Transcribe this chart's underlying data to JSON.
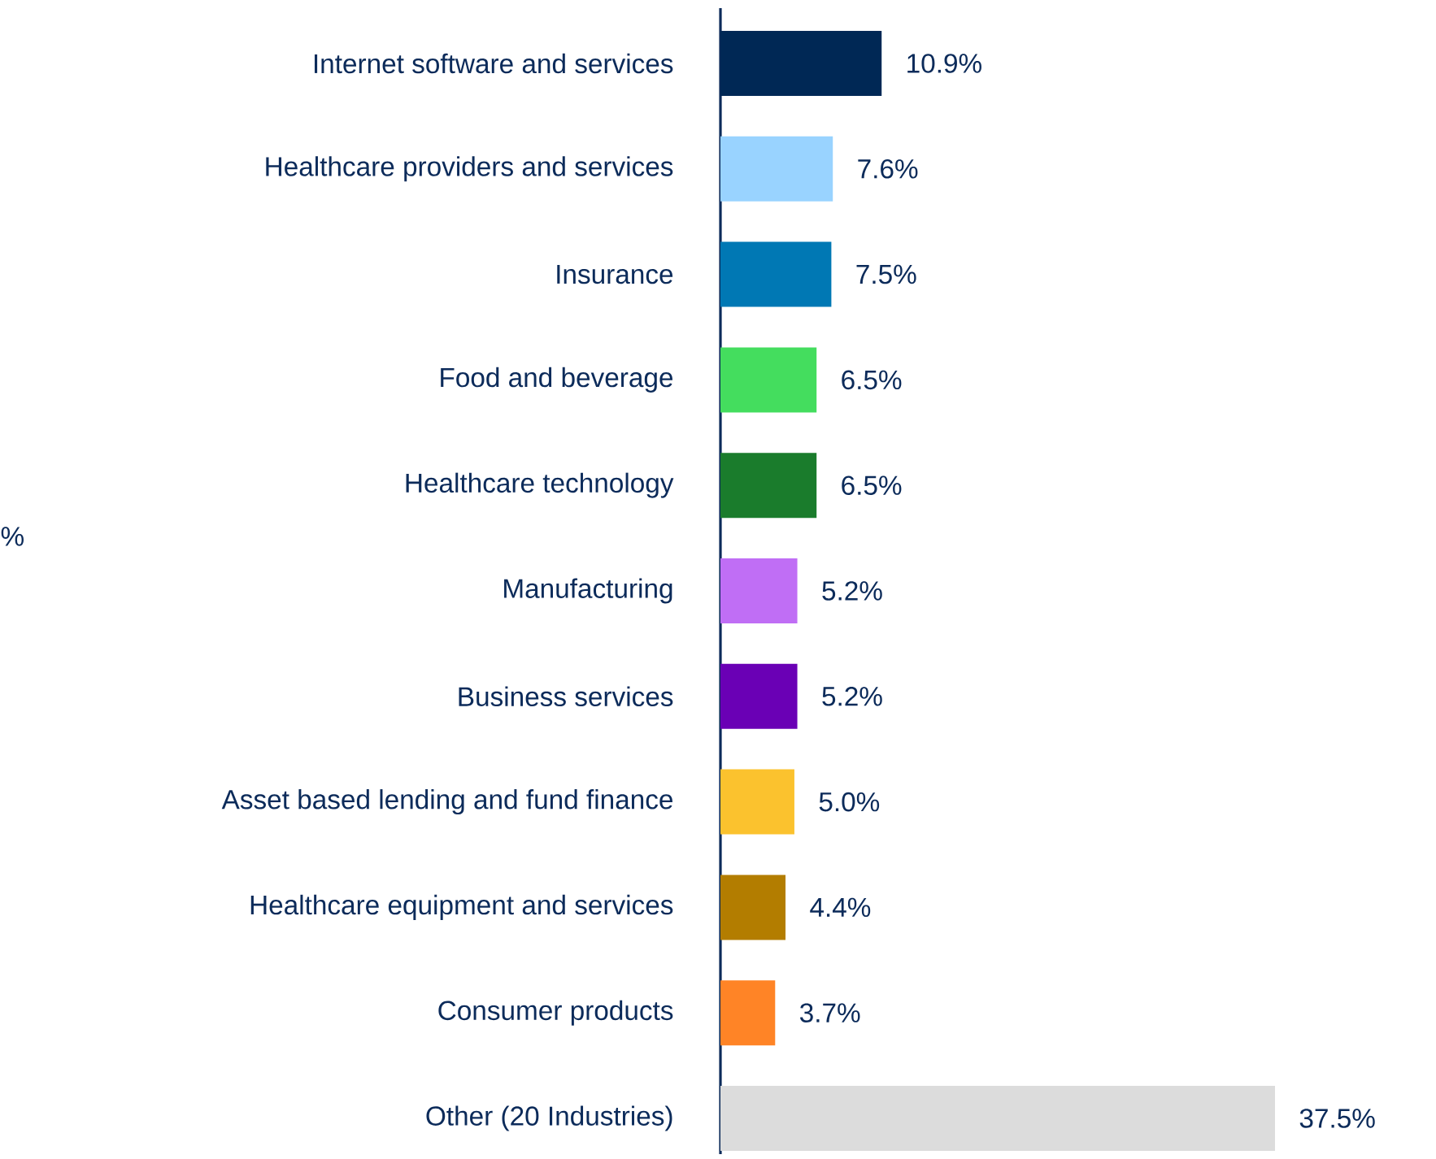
{
  "chart_data": {
    "type": "bar",
    "orientation": "horizontal",
    "categories": [
      "Internet software and services",
      "Healthcare providers and services",
      "Insurance",
      "Food and beverage",
      "Healthcare technology",
      "Manufacturing",
      "Business services",
      "Asset based lending and fund finance",
      "Healthcare equipment and services",
      "Consumer products",
      "Other (20 Industries)"
    ],
    "values": [
      10.9,
      7.6,
      7.5,
      6.5,
      6.5,
      5.2,
      5.2,
      5.0,
      4.4,
      3.7,
      37.5
    ],
    "colors": [
      "#002855",
      "#99d3ff",
      "#0078b4",
      "#44dd5e",
      "#1a7c2c",
      "#c06ef5",
      "#6a00b5",
      "#fbc22e",
      "#b37d00",
      "#ff8426",
      "#dcdcdc"
    ],
    "value_labels": [
      "10.9%",
      "7.6%",
      "7.5%",
      "6.5%",
      "6.5%",
      "5.2%",
      "5.2%",
      "5.0%",
      "4.4%",
      "3.7%",
      "37.5%"
    ],
    "annotations": [
      "%"
    ]
  }
}
